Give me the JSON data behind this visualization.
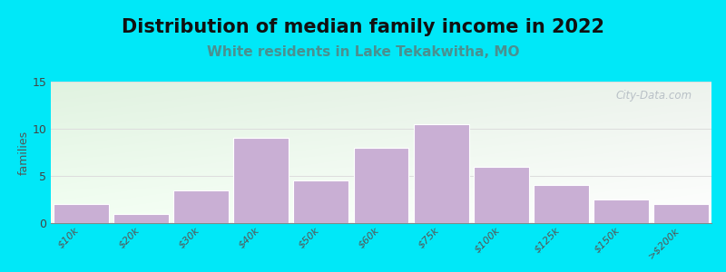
{
  "title": "Distribution of median family income in 2022",
  "subtitle": "White residents in Lake Tekakwitha, MO",
  "watermark": "City-Data.com",
  "ylabel": "families",
  "categories": [
    "$10k",
    "$20k",
    "$30k",
    "$40k",
    "$50k",
    "$60k",
    "$75k",
    "$100k",
    "$125k",
    "$150k",
    ">$200k"
  ],
  "values": [
    2,
    1,
    3.5,
    9,
    4.5,
    8,
    10.5,
    6,
    4,
    2.5,
    2
  ],
  "bar_color": "#c9afd4",
  "bar_edge_color": "#ffffff",
  "ylim": [
    0,
    15
  ],
  "yticks": [
    0,
    5,
    10,
    15
  ],
  "background_outer": "#00e8f8",
  "bg_top_left": "#d8efd0",
  "bg_top_right": "#e8f8f0",
  "bg_bottom": "#ffffff",
  "title_fontsize": 15,
  "subtitle_fontsize": 11,
  "subtitle_color": "#4a9090",
  "ylabel_fontsize": 9,
  "tick_label_fontsize": 8,
  "title_color": "#111111",
  "watermark_color": "#b0b8c0",
  "grid_color": "#dddddd"
}
